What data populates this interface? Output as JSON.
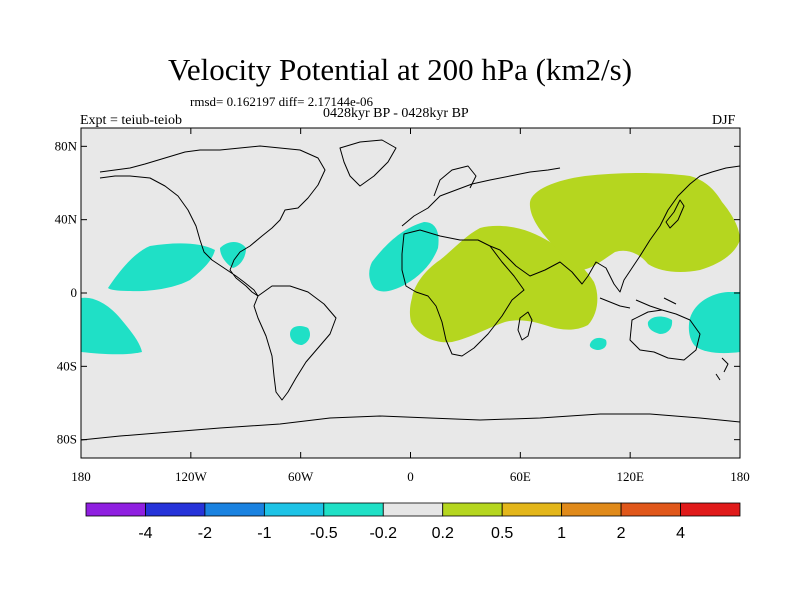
{
  "title": "Velocity Potential at 200 hPa (km2/s)",
  "stats": "rmsd= 0.162197 diff= 2.17144e-06",
  "period": "0428kyr BP - 0428kyr BP",
  "expt": "Expt = teiub-teiob",
  "season": "DJF",
  "map": {
    "lat_labels": [
      "80N",
      "40N",
      "0",
      "40S",
      "80S"
    ],
    "lat_values": [
      80,
      40,
      0,
      -40,
      -80
    ],
    "lon_labels": [
      "180",
      "120W",
      "60W",
      "0",
      "60E",
      "120E",
      "180"
    ],
    "lon_values": [
      -180,
      -120,
      -60,
      0,
      60,
      120,
      180
    ],
    "lat_range": [
      -90,
      90
    ],
    "lon_range": [
      -180,
      180
    ],
    "background_color": "#e8e8e8"
  },
  "colorbar": {
    "colors": [
      "#8f1fe0",
      "#2633d9",
      "#1a82e0",
      "#1ec3e6",
      "#1fe0c6",
      "#e6e6e6",
      "#b5d61f",
      "#e3b61a",
      "#e08a1a",
      "#e0571a",
      "#e01a1a"
    ],
    "labels": [
      "-4",
      "-2",
      "-1",
      "-0.5",
      "-0.2",
      "0.2",
      "0.5",
      "1",
      "2",
      "4"
    ]
  },
  "anomaly_regions": [
    {
      "name": "eastern-pacific-negative",
      "sign": "negative",
      "color": "#1fe0c6"
    },
    {
      "name": "central-america-negative",
      "sign": "negative",
      "color": "#1fe0c6"
    },
    {
      "name": "tropical-atlantic-negative",
      "sign": "negative",
      "color": "#1fe0c6"
    },
    {
      "name": "south-america-negative",
      "sign": "negative",
      "color": "#1fe0c6"
    },
    {
      "name": "south-pacific-negative",
      "sign": "negative",
      "color": "#1fe0c6"
    },
    {
      "name": "western-pacific-negative",
      "sign": "negative",
      "color": "#1fe0c6"
    },
    {
      "name": "australia-negative",
      "sign": "negative",
      "color": "#1fe0c6"
    },
    {
      "name": "africa-indian-ocean-positive",
      "sign": "positive",
      "color": "#b5d61f"
    },
    {
      "name": "east-asia-positive",
      "sign": "positive",
      "color": "#b5d61f"
    }
  ]
}
